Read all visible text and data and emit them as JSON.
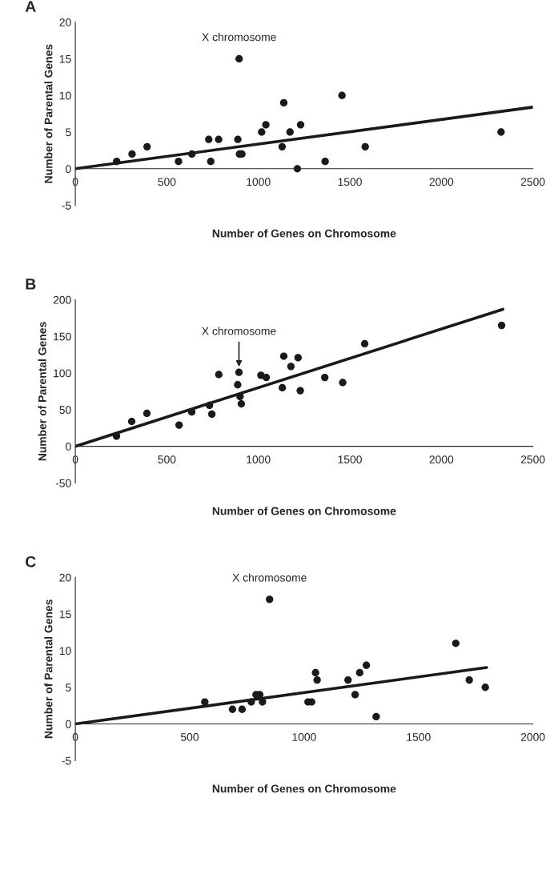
{
  "chart_data": [
    {
      "type": "scatter",
      "title": "A",
      "xlabel": "Number of Genes on Chromosome",
      "ylabel": "Number of Parental Genes",
      "xlim": [
        0,
        2500
      ],
      "ylim": [
        -5,
        20
      ],
      "xticks": [
        0,
        500,
        1000,
        1500,
        2000,
        2500
      ],
      "yticks": [
        -5,
        0,
        5,
        10,
        15,
        20
      ],
      "marker": "circle",
      "annotations": [
        {
          "text": "X chromosome",
          "x": 895,
          "y": 15
        }
      ],
      "series": [
        {
          "color": "#1a1a1a",
          "x": [
            226,
            310,
            392,
            564,
            637,
            729,
            740,
            783,
            888,
            895,
            897,
            910,
            1018,
            1041,
            1130,
            1139,
            1173,
            1213,
            1231,
            1365,
            1457,
            1584,
            2326
          ],
          "values": [
            1,
            2,
            3,
            1,
            2,
            4,
            1,
            4,
            4,
            15,
            2,
            2,
            5,
            6,
            3,
            9,
            5,
            0,
            6,
            1,
            10,
            3,
            5
          ]
        },
        {
          "type": "line",
          "marker": "none",
          "color": "#1a1a1a",
          "x": [
            0,
            2500
          ],
          "values": [
            0,
            8.4
          ]
        }
      ]
    },
    {
      "type": "scatter",
      "title": "B",
      "xlabel": "Number of Genes on Chromosome",
      "ylabel": "Number of Parental Genes",
      "xlim": [
        0,
        2500
      ],
      "ylim": [
        -50,
        200
      ],
      "xticks": [
        0,
        500,
        1000,
        1500,
        2000,
        2500
      ],
      "yticks": [
        -50,
        0,
        50,
        100,
        150,
        200
      ],
      "marker": "circle",
      "annotations": [
        {
          "text": "X chromosome",
          "x": 894,
          "y": 101
        }
      ],
      "series": [
        {
          "color": "#1a1a1a",
          "x": [
            225,
            308,
            391,
            567,
            636,
            733,
            746,
            784,
            887,
            894,
            900,
            907,
            1014,
            1043,
            1131,
            1139,
            1178,
            1217,
            1229,
            1363,
            1461,
            1581,
            2329
          ],
          "values": [
            14,
            34,
            45,
            29,
            47,
            56,
            44,
            98,
            84,
            101,
            68,
            58,
            97,
            94,
            80,
            123,
            109,
            121,
            76,
            94,
            87,
            140,
            165
          ]
        },
        {
          "type": "line",
          "marker": "none",
          "color": "#1a1a1a",
          "x": [
            0,
            2336
          ],
          "values": [
            0,
            187
          ]
        }
      ]
    },
    {
      "type": "scatter",
      "title": "C",
      "xlabel": "Number of Genes on Chromosome",
      "ylabel": "Number of Parental Genes",
      "xlim": [
        0,
        2000
      ],
      "ylim": [
        -5,
        20
      ],
      "xticks": [
        0,
        500,
        1000,
        1500,
        2000
      ],
      "yticks": [
        -5,
        0,
        5,
        10,
        15,
        20
      ],
      "marker": "circle",
      "annotations": [
        {
          "text": "X chromosome",
          "x": 849,
          "y": 17
        }
      ],
      "series": [
        {
          "color": "#1a1a1a",
          "x": [
            566,
            687,
            729,
            769,
            790,
            806,
            818,
            849,
            1017,
            1033,
            1050,
            1057,
            1192,
            1223,
            1243,
            1272,
            1315,
            1663,
            1722,
            1792
          ],
          "values": [
            3,
            2,
            2,
            3,
            4,
            4,
            3,
            17,
            3,
            3,
            7,
            6,
            6,
            4,
            7,
            8,
            1,
            11,
            6,
            5
          ]
        },
        {
          "type": "line",
          "marker": "none",
          "color": "#1a1a1a",
          "x": [
            0,
            1798
          ],
          "values": [
            0,
            7.7
          ]
        }
      ]
    }
  ]
}
